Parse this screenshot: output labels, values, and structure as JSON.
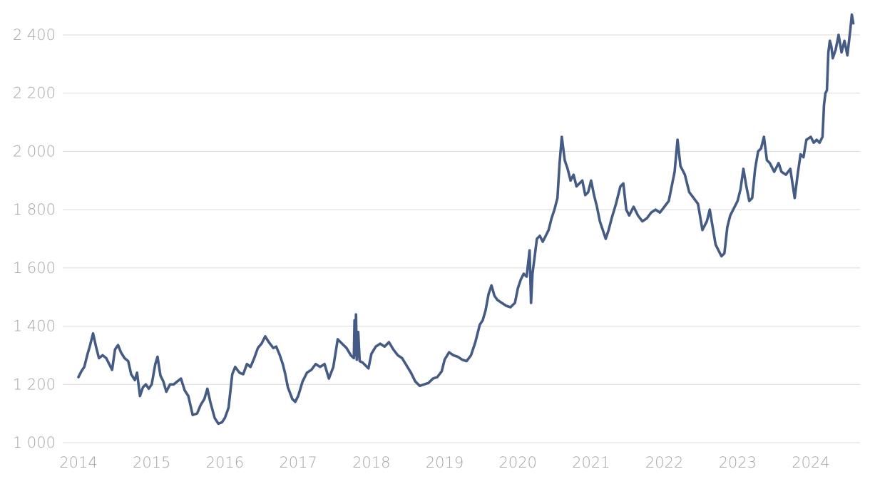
{
  "chart_data": {
    "type": "line",
    "title": "",
    "xlabel": "",
    "ylabel": "",
    "xlim": [
      2014.0,
      2024.95
    ],
    "ylim": [
      1000,
      2440
    ],
    "grid": "horizontal",
    "legend": "none",
    "colors": {
      "series": "#445b85",
      "grid": "#d9d9d9",
      "tick_label": "#a6a6a6",
      "background": "#ffffff"
    },
    "y_ticks": [
      {
        "value": 1000,
        "label": "1 000"
      },
      {
        "value": 1200,
        "label": "1 200"
      },
      {
        "value": 1400,
        "label": "1 400"
      },
      {
        "value": 1600,
        "label": "1 600"
      },
      {
        "value": 1800,
        "label": "1 800"
      },
      {
        "value": 2000,
        "label": "2 000"
      },
      {
        "value": 2200,
        "label": "2 200"
      },
      {
        "value": 2400,
        "label": "2 400"
      }
    ],
    "x_ticks": [
      {
        "value": 2014,
        "label": "2014"
      },
      {
        "value": 2015,
        "label": "2015"
      },
      {
        "value": 2016,
        "label": "2016"
      },
      {
        "value": 2017,
        "label": "2017"
      },
      {
        "value": 2018,
        "label": "2018"
      },
      {
        "value": 2019,
        "label": "2019"
      },
      {
        "value": 2020,
        "label": "2020"
      },
      {
        "value": 2021,
        "label": "2021"
      },
      {
        "value": 2022,
        "label": "2022"
      },
      {
        "value": 2023,
        "label": "2023"
      },
      {
        "value": 2024,
        "label": "2024"
      }
    ],
    "series": [
      {
        "points": [
          [
            2014.0,
            1225
          ],
          [
            2014.04,
            1245
          ],
          [
            2014.08,
            1260
          ],
          [
            2014.12,
            1300
          ],
          [
            2014.16,
            1335
          ],
          [
            2014.2,
            1375
          ],
          [
            2014.24,
            1330
          ],
          [
            2014.28,
            1290
          ],
          [
            2014.33,
            1300
          ],
          [
            2014.38,
            1290
          ],
          [
            2014.42,
            1270
          ],
          [
            2014.46,
            1250
          ],
          [
            2014.5,
            1320
          ],
          [
            2014.54,
            1335
          ],
          [
            2014.58,
            1310
          ],
          [
            2014.63,
            1290
          ],
          [
            2014.68,
            1280
          ],
          [
            2014.72,
            1235
          ],
          [
            2014.77,
            1215
          ],
          [
            2014.8,
            1240
          ],
          [
            2014.84,
            1160
          ],
          [
            2014.88,
            1190
          ],
          [
            2014.92,
            1200
          ],
          [
            2014.96,
            1185
          ],
          [
            2015.0,
            1200
          ],
          [
            2015.05,
            1270
          ],
          [
            2015.08,
            1295
          ],
          [
            2015.12,
            1230
          ],
          [
            2015.16,
            1210
          ],
          [
            2015.2,
            1175
          ],
          [
            2015.25,
            1200
          ],
          [
            2015.3,
            1200
          ],
          [
            2015.35,
            1210
          ],
          [
            2015.4,
            1220
          ],
          [
            2015.45,
            1180
          ],
          [
            2015.5,
            1160
          ],
          [
            2015.56,
            1095
          ],
          [
            2015.62,
            1100
          ],
          [
            2015.67,
            1130
          ],
          [
            2015.72,
            1150
          ],
          [
            2015.76,
            1185
          ],
          [
            2015.8,
            1140
          ],
          [
            2015.86,
            1085
          ],
          [
            2015.91,
            1065
          ],
          [
            2015.96,
            1070
          ],
          [
            2016.0,
            1085
          ],
          [
            2016.05,
            1120
          ],
          [
            2016.1,
            1235
          ],
          [
            2016.14,
            1260
          ],
          [
            2016.2,
            1240
          ],
          [
            2016.25,
            1235
          ],
          [
            2016.3,
            1270
          ],
          [
            2016.35,
            1260
          ],
          [
            2016.4,
            1290
          ],
          [
            2016.45,
            1325
          ],
          [
            2016.5,
            1340
          ],
          [
            2016.55,
            1365
          ],
          [
            2016.6,
            1345
          ],
          [
            2016.66,
            1325
          ],
          [
            2016.7,
            1330
          ],
          [
            2016.75,
            1300
          ],
          [
            2016.79,
            1270
          ],
          [
            2016.82,
            1240
          ],
          [
            2016.86,
            1190
          ],
          [
            2016.92,
            1150
          ],
          [
            2016.96,
            1140
          ],
          [
            2017.0,
            1160
          ],
          [
            2017.06,
            1210
          ],
          [
            2017.12,
            1240
          ],
          [
            2017.18,
            1250
          ],
          [
            2017.24,
            1270
          ],
          [
            2017.3,
            1260
          ],
          [
            2017.36,
            1270
          ],
          [
            2017.42,
            1220
          ],
          [
            2017.48,
            1260
          ],
          [
            2017.54,
            1355
          ],
          [
            2017.6,
            1340
          ],
          [
            2017.66,
            1325
          ],
          [
            2017.72,
            1300
          ],
          [
            2017.76,
            1290
          ],
          [
            2017.77,
            1420
          ],
          [
            2017.78,
            1300
          ],
          [
            2017.79,
            1440
          ],
          [
            2017.8,
            1285
          ],
          [
            2017.82,
            1380
          ],
          [
            2017.84,
            1280
          ],
          [
            2017.88,
            1275
          ],
          [
            2017.92,
            1265
          ],
          [
            2017.96,
            1255
          ],
          [
            2018.0,
            1305
          ],
          [
            2018.06,
            1330
          ],
          [
            2018.12,
            1340
          ],
          [
            2018.18,
            1330
          ],
          [
            2018.24,
            1345
          ],
          [
            2018.3,
            1320
          ],
          [
            2018.36,
            1300
          ],
          [
            2018.42,
            1290
          ],
          [
            2018.48,
            1265
          ],
          [
            2018.54,
            1240
          ],
          [
            2018.6,
            1210
          ],
          [
            2018.66,
            1195
          ],
          [
            2018.72,
            1200
          ],
          [
            2018.78,
            1205
          ],
          [
            2018.84,
            1220
          ],
          [
            2018.9,
            1225
          ],
          [
            2018.96,
            1245
          ],
          [
            2019.0,
            1285
          ],
          [
            2019.06,
            1310
          ],
          [
            2019.12,
            1300
          ],
          [
            2019.18,
            1295
          ],
          [
            2019.24,
            1285
          ],
          [
            2019.3,
            1280
          ],
          [
            2019.36,
            1300
          ],
          [
            2019.42,
            1345
          ],
          [
            2019.48,
            1405
          ],
          [
            2019.52,
            1420
          ],
          [
            2019.56,
            1455
          ],
          [
            2019.6,
            1510
          ],
          [
            2019.64,
            1540
          ],
          [
            2019.68,
            1505
          ],
          [
            2019.72,
            1490
          ],
          [
            2019.78,
            1480
          ],
          [
            2019.84,
            1470
          ],
          [
            2019.9,
            1465
          ],
          [
            2019.96,
            1480
          ],
          [
            2020.0,
            1530
          ],
          [
            2020.04,
            1560
          ],
          [
            2020.08,
            1580
          ],
          [
            2020.12,
            1570
          ],
          [
            2020.16,
            1660
          ],
          [
            2020.18,
            1480
          ],
          [
            2020.2,
            1580
          ],
          [
            2020.22,
            1620
          ],
          [
            2020.26,
            1700
          ],
          [
            2020.3,
            1710
          ],
          [
            2020.34,
            1690
          ],
          [
            2020.38,
            1710
          ],
          [
            2020.42,
            1730
          ],
          [
            2020.46,
            1770
          ],
          [
            2020.5,
            1800
          ],
          [
            2020.54,
            1840
          ],
          [
            2020.57,
            1960
          ],
          [
            2020.6,
            2050
          ],
          [
            2020.64,
            1970
          ],
          [
            2020.68,
            1940
          ],
          [
            2020.72,
            1900
          ],
          [
            2020.76,
            1920
          ],
          [
            2020.8,
            1880
          ],
          [
            2020.84,
            1890
          ],
          [
            2020.88,
            1900
          ],
          [
            2020.92,
            1850
          ],
          [
            2020.96,
            1860
          ],
          [
            2021.0,
            1900
          ],
          [
            2021.04,
            1850
          ],
          [
            2021.08,
            1810
          ],
          [
            2021.12,
            1760
          ],
          [
            2021.16,
            1730
          ],
          [
            2021.2,
            1700
          ],
          [
            2021.24,
            1730
          ],
          [
            2021.28,
            1770
          ],
          [
            2021.34,
            1820
          ],
          [
            2021.4,
            1880
          ],
          [
            2021.44,
            1890
          ],
          [
            2021.48,
            1800
          ],
          [
            2021.52,
            1780
          ],
          [
            2021.58,
            1810
          ],
          [
            2021.64,
            1780
          ],
          [
            2021.7,
            1760
          ],
          [
            2021.76,
            1770
          ],
          [
            2021.82,
            1790
          ],
          [
            2021.88,
            1800
          ],
          [
            2021.94,
            1790
          ],
          [
            2022.0,
            1810
          ],
          [
            2022.06,
            1830
          ],
          [
            2022.1,
            1880
          ],
          [
            2022.14,
            1930
          ],
          [
            2022.18,
            2040
          ],
          [
            2022.22,
            1950
          ],
          [
            2022.28,
            1920
          ],
          [
            2022.34,
            1860
          ],
          [
            2022.4,
            1840
          ],
          [
            2022.46,
            1820
          ],
          [
            2022.52,
            1730
          ],
          [
            2022.58,
            1760
          ],
          [
            2022.62,
            1800
          ],
          [
            2022.66,
            1740
          ],
          [
            2022.7,
            1680
          ],
          [
            2022.74,
            1660
          ],
          [
            2022.78,
            1640
          ],
          [
            2022.82,
            1650
          ],
          [
            2022.86,
            1740
          ],
          [
            2022.9,
            1780
          ],
          [
            2022.96,
            1810
          ],
          [
            2023.0,
            1830
          ],
          [
            2023.04,
            1870
          ],
          [
            2023.08,
            1940
          ],
          [
            2023.12,
            1880
          ],
          [
            2023.16,
            1830
          ],
          [
            2023.2,
            1840
          ],
          [
            2023.24,
            1940
          ],
          [
            2023.28,
            2000
          ],
          [
            2023.32,
            2010
          ],
          [
            2023.36,
            2050
          ],
          [
            2023.4,
            1970
          ],
          [
            2023.44,
            1960
          ],
          [
            2023.5,
            1930
          ],
          [
            2023.56,
            1960
          ],
          [
            2023.6,
            1930
          ],
          [
            2023.66,
            1920
          ],
          [
            2023.72,
            1940
          ],
          [
            2023.78,
            1840
          ],
          [
            2023.82,
            1920
          ],
          [
            2023.86,
            1990
          ],
          [
            2023.9,
            1980
          ],
          [
            2023.94,
            2040
          ],
          [
            2024.0,
            2050
          ],
          [
            2024.04,
            2030
          ],
          [
            2024.08,
            2040
          ],
          [
            2024.12,
            2030
          ],
          [
            2024.16,
            2050
          ],
          [
            2024.18,
            2160
          ],
          [
            2024.2,
            2200
          ],
          [
            2024.22,
            2210
          ],
          [
            2024.24,
            2340
          ],
          [
            2024.26,
            2380
          ],
          [
            2024.28,
            2360
          ],
          [
            2024.3,
            2320
          ],
          [
            2024.34,
            2350
          ],
          [
            2024.38,
            2400
          ],
          [
            2024.42,
            2340
          ],
          [
            2024.46,
            2380
          ],
          [
            2024.5,
            2330
          ],
          [
            2024.54,
            2420
          ],
          [
            2024.56,
            2470
          ],
          [
            2024.58,
            2440
          ]
        ]
      }
    ]
  }
}
